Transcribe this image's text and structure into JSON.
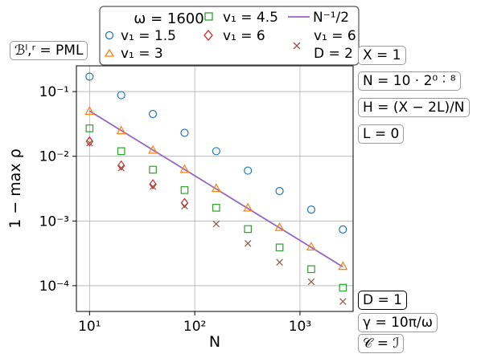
{
  "chart_data": {
    "type": "scatter",
    "xlabel": "N",
    "ylabel": "1 − max ρ",
    "xscale": "log",
    "yscale": "log",
    "xlim": [
      7.5,
      3200
    ],
    "ylim": [
      4e-05,
      0.25
    ],
    "x_ticks": [
      10,
      100,
      1000
    ],
    "x_tick_labels": [
      "10¹",
      "10²",
      "10³"
    ],
    "y_ticks": [
      0.0001,
      0.001,
      0.01,
      0.1
    ],
    "y_tick_labels": [
      "10⁻⁴",
      "10⁻³",
      "10⁻²",
      "10⁻¹"
    ],
    "grid": true,
    "legend_placement": "top-center",
    "legend_title": "ω = 1600",
    "x": [
      10,
      20,
      40,
      80,
      160,
      320,
      640,
      1280,
      2560
    ],
    "series": [
      {
        "name": "v₁ = 1.5",
        "marker": "circle",
        "color": "#1f77b4",
        "values": [
          0.17,
          0.088,
          0.045,
          0.023,
          0.012,
          0.006,
          0.0029,
          0.0015,
          0.00074
        ]
      },
      {
        "name": "v₁ = 3",
        "marker": "triangle",
        "color": "#ff7f0e",
        "values": [
          0.05,
          0.025,
          0.0125,
          0.0063,
          0.0032,
          0.0016,
          0.0008,
          0.0004,
          0.0002
        ]
      },
      {
        "name": "v₁ = 4.5",
        "marker": "square",
        "color": "#2ca02c",
        "values": [
          0.027,
          0.012,
          0.0062,
          0.003,
          0.0016,
          0.00075,
          0.00039,
          0.00018,
          9.3e-05
        ]
      },
      {
        "name": "v₁ = 6",
        "marker": "diamond",
        "color": "#d62728",
        "values": [
          0.017,
          0.0072,
          0.0037,
          0.0019
        ]
      },
      {
        "name": "v₁ = 6 D = 2",
        "marker": "x",
        "color": "#8c564b",
        "values": [
          0.016,
          0.0066,
          0.0034,
          0.0017,
          0.0009,
          0.00045,
          0.00023,
          0.000115,
          5.7e-05
        ]
      },
      {
        "name": "N⁻¹/2",
        "line": true,
        "color": "#9467bd",
        "values": [
          0.05,
          0.025,
          0.0125,
          0.00625,
          0.003125,
          0.0015625,
          0.00078125,
          0.000390625,
          0.0001953125
        ]
      }
    ]
  },
  "legend": {
    "title": "ω = 1600",
    "v15": "v₁ = 1.5",
    "v3": "v₁ = 3",
    "v45": "v₁ = 4.5",
    "v6": "v₁ = 6",
    "line": "N⁻¹/2",
    "v6d2_a": "v₁ = 6",
    "v6d2_b": "D = 2"
  },
  "annotations": {
    "boundary": "ℬˡ,ʳ = PML",
    "X": "X = 1",
    "N": "N = 10 · 2⁰ ˸ ⁸",
    "H": "H = (X − 2L)/N",
    "L": "L = 0",
    "D": "D = 1",
    "gamma": "γ = 10π/ω",
    "C": "𝒞 = ℐ"
  },
  "colors": {
    "circle": "#1f77b4",
    "triangle": "#ff7f0e",
    "square": "#2ca02c",
    "diamond": "#d62728",
    "x": "#8c564b",
    "line": "#9467bd",
    "grid": "#b0b0b0"
  }
}
